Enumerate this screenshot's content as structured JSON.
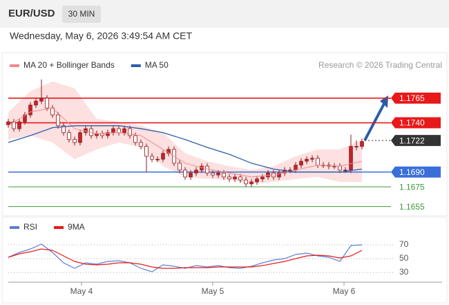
{
  "header": {
    "symbol": "EUR/USD",
    "interval": "30 MIN",
    "timestamp": "Wednesday, May 6, 2026 3:49:54 AM CET"
  },
  "chart_data": [
    {
      "type": "candlestick",
      "source": "Research © 2026 Trading Central",
      "xlim": [
        0,
        78.5
      ],
      "ylim": [
        1.1647,
        1.1786
      ],
      "up_color": "#c0252a",
      "down_color": "#ffffff",
      "candle_stroke": "#8b1a1e",
      "open": [
        1.1738,
        1.1741,
        1.1734,
        1.1741,
        1.1748,
        1.1758,
        1.1762,
        1.1765,
        1.1755,
        1.1748,
        1.1737,
        1.173,
        1.1723,
        1.172,
        1.173,
        1.1734,
        1.1727,
        1.1729,
        1.1727,
        1.173,
        1.1734,
        1.173,
        1.1734,
        1.1727,
        1.172,
        1.1716,
        1.1706,
        1.1703,
        1.1703,
        1.1709,
        1.1713,
        1.1699,
        1.1692,
        1.1685,
        1.1689,
        1.1692,
        1.1696,
        1.1689,
        1.1687,
        1.1689,
        1.1685,
        1.1683,
        1.1685,
        1.1682,
        1.1678,
        1.168,
        1.1683,
        1.1685,
        1.1689,
        1.1685,
        1.1689,
        1.1692,
        1.1692,
        1.1697,
        1.1701,
        1.1703,
        1.1704,
        1.1697,
        1.1697,
        1.1696,
        1.1696,
        1.1692,
        1.1692,
        1.1716,
        1.1716
      ],
      "high": [
        1.1744,
        1.1744,
        1.1744,
        1.1751,
        1.1761,
        1.1765,
        1.1784,
        1.1768,
        1.1758,
        1.1751,
        1.174,
        1.1733,
        1.1726,
        1.1733,
        1.1737,
        1.1737,
        1.1732,
        1.1732,
        1.1733,
        1.1737,
        1.1737,
        1.1737,
        1.1737,
        1.173,
        1.1723,
        1.1719,
        1.1709,
        1.1706,
        1.1712,
        1.1716,
        1.1716,
        1.1702,
        1.1695,
        1.1692,
        1.1695,
        1.1699,
        1.1699,
        1.1692,
        1.1692,
        1.1692,
        1.1688,
        1.1688,
        1.1688,
        1.1685,
        1.1683,
        1.1686,
        1.1688,
        1.1692,
        1.1692,
        1.1692,
        1.1695,
        1.1695,
        1.17,
        1.1704,
        1.1706,
        1.1707,
        1.1707,
        1.17,
        1.17,
        1.1699,
        1.1699,
        1.1695,
        1.1728,
        1.1722,
        1.1724
      ],
      "low": [
        1.1735,
        1.1731,
        1.1731,
        1.1738,
        1.1745,
        1.1755,
        1.1759,
        1.1752,
        1.1745,
        1.1734,
        1.1727,
        1.172,
        1.1717,
        1.1717,
        1.1727,
        1.1724,
        1.1724,
        1.1724,
        1.1724,
        1.1727,
        1.1727,
        1.1727,
        1.1724,
        1.1717,
        1.1713,
        1.169,
        1.17,
        1.17,
        1.17,
        1.1706,
        1.1696,
        1.1689,
        1.1682,
        1.1682,
        1.1686,
        1.1689,
        1.1686,
        1.1684,
        1.1684,
        1.1682,
        1.168,
        1.168,
        1.1679,
        1.1675,
        1.1675,
        1.1677,
        1.168,
        1.1682,
        1.1682,
        1.1682,
        1.1686,
        1.1689,
        1.1689,
        1.1694,
        1.1698,
        1.17,
        1.1694,
        1.1694,
        1.1693,
        1.1693,
        1.1689,
        1.1689,
        1.1689,
        1.1712,
        1.1713
      ],
      "close": [
        1.1741,
        1.1734,
        1.1741,
        1.1748,
        1.1758,
        1.1762,
        1.1765,
        1.1755,
        1.1748,
        1.1737,
        1.173,
        1.1723,
        1.172,
        1.173,
        1.1734,
        1.1727,
        1.1729,
        1.1727,
        1.173,
        1.1734,
        1.173,
        1.1734,
        1.1727,
        1.172,
        1.1716,
        1.1706,
        1.1703,
        1.1703,
        1.1709,
        1.1713,
        1.1699,
        1.1692,
        1.1685,
        1.1689,
        1.1692,
        1.1696,
        1.1689,
        1.1687,
        1.1689,
        1.1685,
        1.1683,
        1.1685,
        1.1682,
        1.1678,
        1.168,
        1.1683,
        1.1685,
        1.1689,
        1.1685,
        1.1689,
        1.1692,
        1.1692,
        1.1697,
        1.1701,
        1.1703,
        1.1704,
        1.1697,
        1.1697,
        1.1696,
        1.1696,
        1.1692,
        1.1692,
        1.1716,
        1.1716,
        1.1721
      ],
      "series": [
        {
          "name": "MA 20 + Bollinger Bands",
          "color": "#f08a8a",
          "band_color": "#fde0e0",
          "x": [
            0,
            4,
            8,
            12,
            16,
            20,
            24,
            28,
            32,
            36,
            40,
            44,
            48,
            52,
            56,
            60,
            64
          ],
          "values": [
            1.1737,
            1.1751,
            1.1755,
            1.1734,
            1.1729,
            1.173,
            1.1727,
            1.1713,
            1.1699,
            1.1693,
            1.1689,
            1.1685,
            1.1687,
            1.1692,
            1.1697,
            1.1696,
            1.1701
          ],
          "upper": [
            1.1751,
            1.1772,
            1.1782,
            1.1775,
            1.1744,
            1.1741,
            1.1737,
            1.173,
            1.1709,
            1.1701,
            1.1696,
            1.1692,
            1.1696,
            1.1706,
            1.1713,
            1.1713,
            1.1723
          ],
          "lower": [
            1.1723,
            1.1727,
            1.172,
            1.1703,
            1.1713,
            1.172,
            1.1715,
            1.1696,
            1.1685,
            1.1683,
            1.1682,
            1.1678,
            1.168,
            1.1683,
            1.1685,
            1.168,
            1.168
          ]
        },
        {
          "name": "MA 50",
          "color": "#2b5ca8",
          "x": [
            0,
            4,
            8,
            12,
            16,
            20,
            24,
            28,
            32,
            36,
            40,
            44,
            48,
            52,
            56,
            60,
            64
          ],
          "values": [
            1.172,
            1.1727,
            1.1735,
            1.1737,
            1.1737,
            1.1737,
            1.1734,
            1.173,
            1.1723,
            1.1715,
            1.1708,
            1.1699,
            1.1693,
            1.169,
            1.169,
            1.169,
            1.1693
          ]
        }
      ],
      "levels": [
        {
          "value": 1.1765,
          "color": "#e8191a",
          "box": true
        },
        {
          "value": 1.174,
          "label": "1.1740",
          "color": "#e8191a",
          "box": true
        },
        {
          "value": 1.1722,
          "color": "#333333",
          "box": true,
          "dotted": true
        },
        {
          "value": 1.169,
          "label": "1.1690",
          "color": "#3a6fd8",
          "box": true
        },
        {
          "value": 1.1675,
          "color": "#3c9a3c",
          "box": false
        },
        {
          "value": 1.1655,
          "color": "#3c9a3c",
          "box": false
        }
      ]
    },
    {
      "type": "line",
      "xlim": [
        0,
        78.5
      ],
      "ylim": [
        16,
        84
      ],
      "yticks": [
        70,
        50,
        30
      ],
      "xticks": [
        {
          "value": 13.25,
          "label": "May 4"
        },
        {
          "value": 37,
          "label": "May 5"
        },
        {
          "value": 60.75,
          "label": "May 6"
        }
      ],
      "series": [
        {
          "name": "RSI",
          "color": "#5b7fd6",
          "x": [
            0,
            2,
            4,
            6,
            8,
            10,
            12,
            14,
            16,
            18,
            20,
            22,
            24,
            26,
            28,
            30,
            32,
            34,
            36,
            38,
            40,
            42,
            44,
            46,
            48,
            50,
            52,
            54,
            56,
            58,
            60,
            62,
            64
          ],
          "values": [
            52,
            59,
            64,
            71,
            59,
            44,
            36,
            44,
            42,
            46,
            47,
            44,
            36,
            31,
            41,
            39,
            36,
            40,
            38,
            40,
            37,
            36,
            39,
            44,
            48,
            50,
            56,
            58,
            54,
            52,
            46,
            69,
            70
          ]
        },
        {
          "name": "9MA",
          "color": "#e8191a",
          "x": [
            0,
            2,
            4,
            6,
            8,
            10,
            12,
            14,
            16,
            18,
            20,
            22,
            24,
            26,
            28,
            30,
            32,
            34,
            36,
            38,
            40,
            42,
            44,
            46,
            48,
            50,
            52,
            54,
            56,
            58,
            60,
            62,
            64
          ],
          "values": [
            52,
            57,
            60,
            64,
            62,
            54,
            46,
            42,
            41,
            42,
            44,
            44,
            42,
            38,
            36,
            36,
            37,
            37,
            37,
            38,
            38,
            38,
            38,
            40,
            43,
            46,
            50,
            54,
            55,
            54,
            51,
            54,
            62
          ]
        }
      ]
    }
  ]
}
